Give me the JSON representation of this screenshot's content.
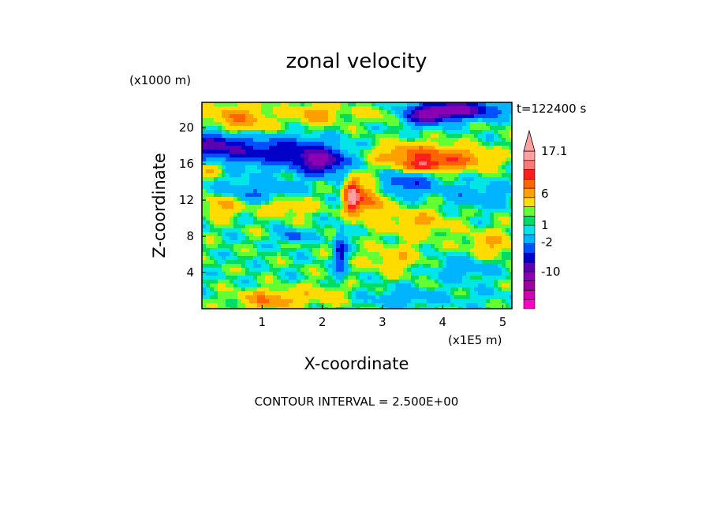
{
  "chart_data": {
    "type": "heatmap",
    "title": "zonal velocity",
    "xlabel": "X-coordinate",
    "ylabel": "Z-coordinate",
    "x_unit": "(x1E5 m)",
    "y_unit": "(x1000 m)",
    "time_label": "t=122400 s",
    "footer": "CONTOUR INTERVAL = 2.500E+00",
    "xlim": [
      0,
      5.15
    ],
    "ylim": [
      0,
      22.8
    ],
    "x_ticks": [
      1,
      2,
      3,
      4,
      5
    ],
    "y_ticks": [
      4,
      8,
      12,
      16,
      20
    ],
    "x_tick_labels": [
      "1",
      "2",
      "3",
      "4",
      "5"
    ],
    "y_tick_labels": [
      "4",
      "8",
      "12",
      "16",
      "20"
    ],
    "colorbar": {
      "levels": [
        -20,
        -17.5,
        -15,
        -12.5,
        -10,
        -7.5,
        -5,
        -2.5,
        0,
        1,
        1.5,
        2.5,
        5,
        7.5,
        10,
        12.5,
        15,
        17.1
      ],
      "colors": [
        "#ff00c8",
        "#d000b0",
        "#a000a0",
        "#8c00b4",
        "#5a00b4",
        "#0000c8",
        "#0050ff",
        "#00b4ff",
        "#00e6e6",
        "#00dc64",
        "#64ff32",
        "#ffdc00",
        "#ffa000",
        "#ff6400",
        "#ff1e1e",
        "#ff7878",
        "#ffa0a0"
      ],
      "labels": [
        {
          "value": 17.1,
          "text": "17.1"
        },
        {
          "value": 6,
          "text": "6"
        },
        {
          "value": 1,
          "text": "1"
        },
        {
          "value": -2,
          "text": "-2"
        },
        {
          "value": -10,
          "text": "-10"
        }
      ]
    },
    "features": [
      {
        "x": 0.6,
        "z": 21.0,
        "v": 6.0,
        "sx": 0.5,
        "sz": 1.6
      },
      {
        "x": 1.9,
        "z": 21.5,
        "v": 5.0,
        "sx": 0.4,
        "sz": 1.2
      },
      {
        "x": 3.1,
        "z": 21.6,
        "v": 2.5,
        "sx": 0.5,
        "sz": 1.0
      },
      {
        "x": 4.2,
        "z": 22.0,
        "v": -12.0,
        "sx": 0.7,
        "sz": 1.0
      },
      {
        "x": 3.7,
        "z": 21.2,
        "v": -8.0,
        "sx": 0.4,
        "sz": 1.0
      },
      {
        "x": 0.2,
        "z": 18.0,
        "v": -9.0,
        "sx": 0.5,
        "sz": 1.6
      },
      {
        "x": 1.3,
        "z": 17.3,
        "v": -8.0,
        "sx": 0.8,
        "sz": 1.6
      },
      {
        "x": 2.0,
        "z": 16.2,
        "v": -10.0,
        "sx": 0.4,
        "sz": 1.4
      },
      {
        "x": 3.5,
        "z": 17.0,
        "v": 7.0,
        "sx": 0.6,
        "sz": 1.3
      },
      {
        "x": 4.3,
        "z": 16.5,
        "v": 6.0,
        "sx": 0.6,
        "sz": 1.2
      },
      {
        "x": 3.7,
        "z": 15.8,
        "v": 8.0,
        "sx": 0.3,
        "sz": 0.6
      },
      {
        "x": 0.15,
        "z": 15.5,
        "v": 4.0,
        "sx": 0.25,
        "sz": 0.8
      },
      {
        "x": 0.9,
        "z": 12.8,
        "v": -4.0,
        "sx": 0.7,
        "sz": 1.5
      },
      {
        "x": 0.35,
        "z": 11.5,
        "v": 5.0,
        "sx": 0.35,
        "sz": 1.2
      },
      {
        "x": 1.4,
        "z": 11.4,
        "v": 4.0,
        "sx": 0.5,
        "sz": 1.2
      },
      {
        "x": 2.5,
        "z": 12.5,
        "v": 14.0,
        "sx": 0.12,
        "sz": 1.8
      },
      {
        "x": 2.78,
        "z": 12.0,
        "v": 7.0,
        "sx": 0.25,
        "sz": 2.0
      },
      {
        "x": 3.4,
        "z": 13.8,
        "v": -6.0,
        "sx": 0.45,
        "sz": 1.2
      },
      {
        "x": 4.6,
        "z": 12.5,
        "v": -3.0,
        "sx": 0.6,
        "sz": 1.4
      },
      {
        "x": 3.6,
        "z": 9.5,
        "v": 4.0,
        "sx": 0.5,
        "sz": 1.6
      },
      {
        "x": 4.8,
        "z": 7.2,
        "v": 4.0,
        "sx": 0.4,
        "sz": 1.5
      },
      {
        "x": 0.9,
        "z": 6.2,
        "v": 0.0,
        "sx": 0.8,
        "sz": 1.8
      },
      {
        "x": 1.5,
        "z": 8.0,
        "v": -6.0,
        "sx": 0.2,
        "sz": 0.6
      },
      {
        "x": 2.3,
        "z": 6.0,
        "v": -7.0,
        "sx": 0.1,
        "sz": 2.5
      },
      {
        "x": 3.2,
        "z": 5.5,
        "v": 3.0,
        "sx": 0.5,
        "sz": 1.6
      },
      {
        "x": 4.3,
        "z": 4.5,
        "v": -3.0,
        "sx": 0.5,
        "sz": 1.3
      },
      {
        "x": 1.1,
        "z": 1.0,
        "v": 6.0,
        "sx": 0.5,
        "sz": 1.0
      },
      {
        "x": 2.0,
        "z": 1.6,
        "v": 3.0,
        "sx": 0.4,
        "sz": 1.2
      },
      {
        "x": 3.3,
        "z": 1.2,
        "v": -3.0,
        "sx": 0.5,
        "sz": 1.0
      },
      {
        "x": 4.5,
        "z": 1.3,
        "v": -1.0,
        "sx": 0.6,
        "sz": 1.0
      }
    ]
  }
}
